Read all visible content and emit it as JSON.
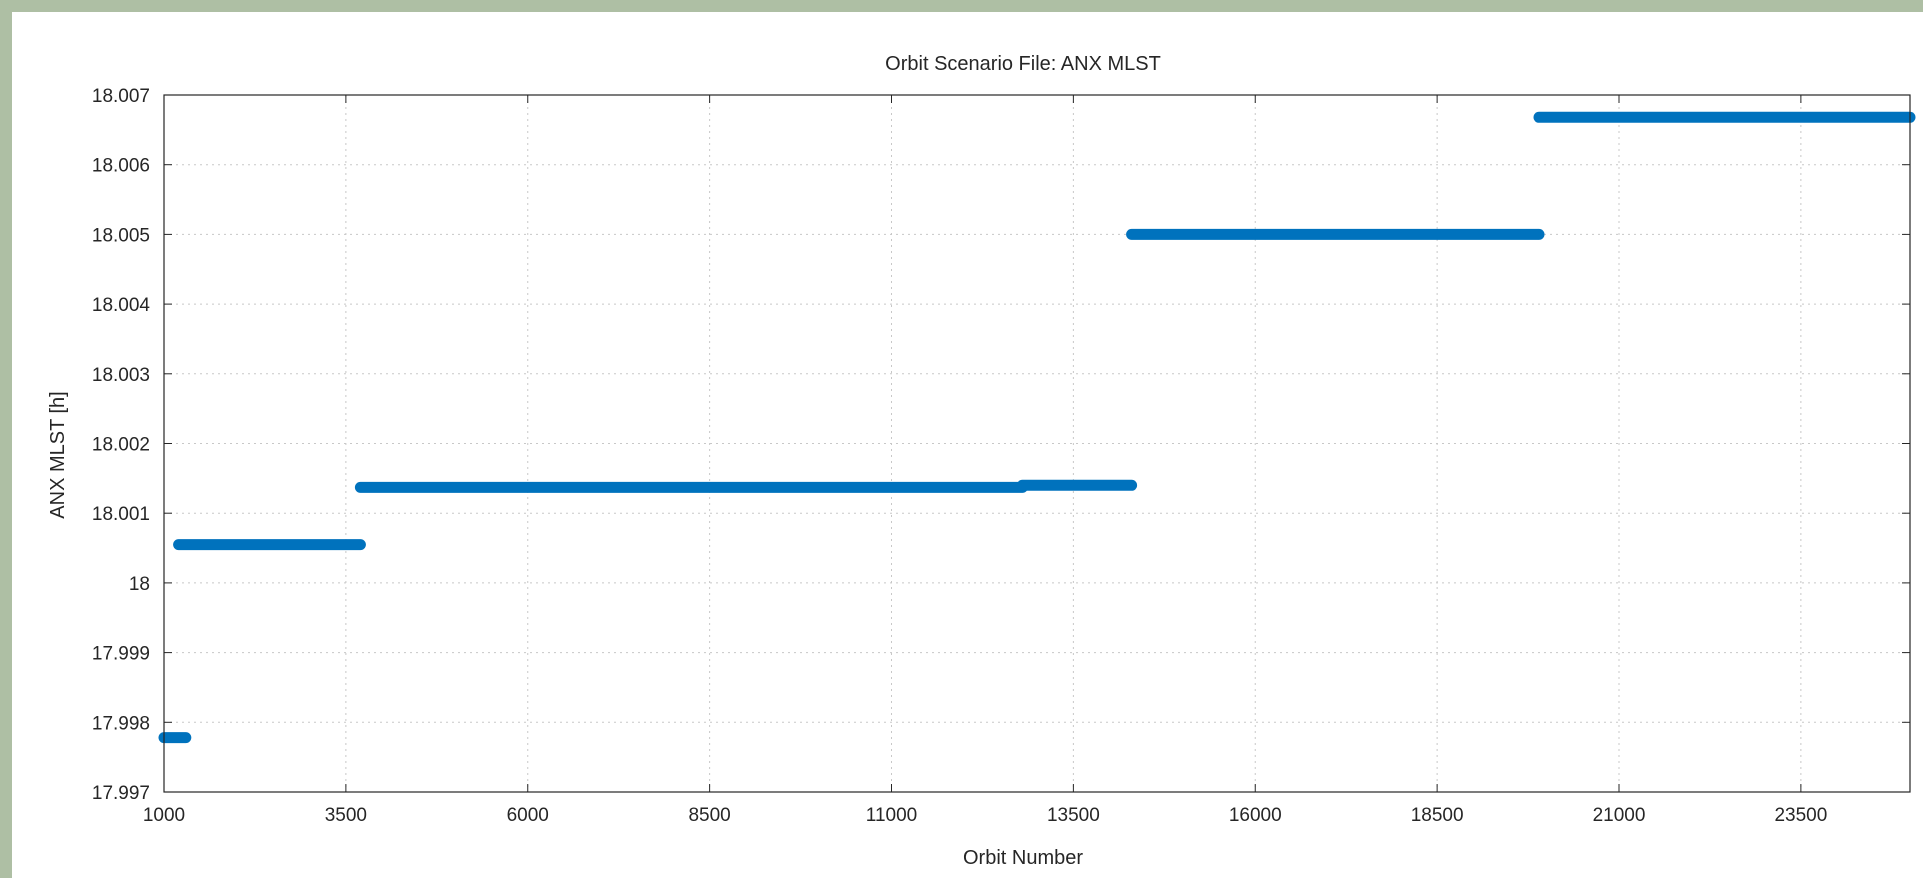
{
  "chart_data": {
    "type": "line",
    "title": "Orbit Scenario File: ANX MLST",
    "xlabel": "Orbit Number",
    "ylabel": "ANX MLST [h]",
    "xlim": [
      1000,
      25000
    ],
    "ylim": [
      17.997,
      18.007
    ],
    "xticks": [
      "1000",
      "3500",
      "6000",
      "8500",
      "11000",
      "13500",
      "16000",
      "18500",
      "21000",
      "23500"
    ],
    "yticks": [
      "17.997",
      "17.998",
      "17.999",
      "18",
      "18.001",
      "18.002",
      "18.003",
      "18.004",
      "18.005",
      "18.006",
      "18.007"
    ],
    "grid": true,
    "line_color": "#0072bd",
    "series": [
      {
        "segments": [
          {
            "x": [
              1000,
              1300
            ],
            "y": [
              17.99778,
              17.99778
            ]
          },
          {
            "x": [
              1200,
              3700
            ],
            "y": [
              18.00055,
              18.00055
            ]
          },
          {
            "x": [
              3700,
              12800
            ],
            "y": [
              18.00137,
              18.00137
            ]
          },
          {
            "x": [
              12800,
              14300
            ],
            "y": [
              18.0014,
              18.0014
            ]
          },
          {
            "x": [
              14300,
              19900
            ],
            "y": [
              18.005,
              18.005
            ]
          },
          {
            "x": [
              19900,
              25000
            ],
            "y": [
              18.00668,
              18.00668
            ]
          }
        ]
      }
    ]
  }
}
